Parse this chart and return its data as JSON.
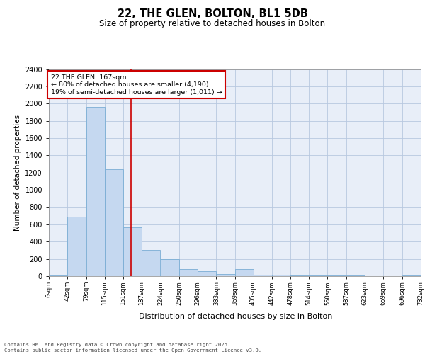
{
  "title1": "22, THE GLEN, BOLTON, BL1 5DB",
  "title2": "Size of property relative to detached houses in Bolton",
  "xlabel": "Distribution of detached houses by size in Bolton",
  "ylabel": "Number of detached properties",
  "bar_color": "#c5d8f0",
  "bar_edge_color": "#7aadd4",
  "background_color": "#e8eef8",
  "grid_color": "#b8c8e0",
  "annotation_box_color": "#cc0000",
  "property_line_color": "#cc0000",
  "property_size": 167,
  "annotation_text": "22 THE GLEN: 167sqm\n← 80% of detached houses are smaller (4,190)\n19% of semi-detached houses are larger (1,011) →",
  "footer_text": "Contains HM Land Registry data © Crown copyright and database right 2025.\nContains public sector information licensed under the Open Government Licence v3.0.",
  "bin_edges": [
    6,
    42,
    79,
    115,
    151,
    187,
    224,
    260,
    296,
    333,
    369,
    405,
    442,
    478,
    514,
    550,
    587,
    623,
    659,
    696,
    732
  ],
  "bin_values": [
    5,
    690,
    1960,
    1240,
    570,
    300,
    195,
    80,
    55,
    25,
    80,
    15,
    15,
    5,
    5,
    5,
    5,
    0,
    0,
    5
  ],
  "ylim": [
    0,
    2400
  ],
  "yticks": [
    0,
    200,
    400,
    600,
    800,
    1000,
    1200,
    1400,
    1600,
    1800,
    2000,
    2200,
    2400
  ]
}
